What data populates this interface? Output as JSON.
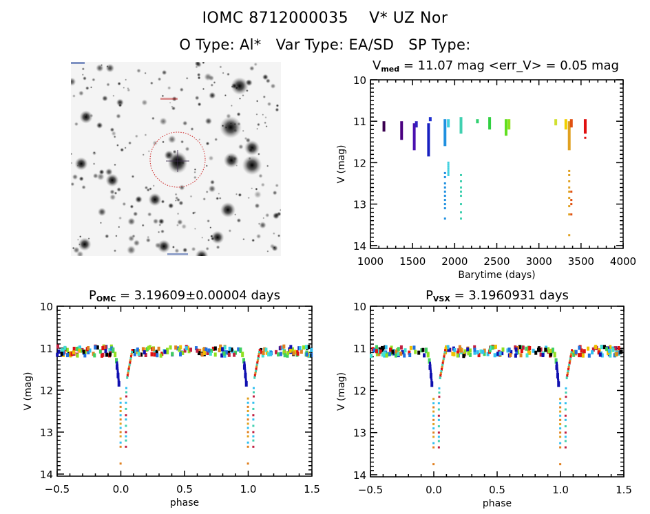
{
  "header": {
    "title": "IOMC 8712000035    V* UZ Nor",
    "otype": "O Type: Al*",
    "vartype": "Var Type: EA/SD",
    "sptype": "SP Type:"
  },
  "finder_chart": {
    "description": "grayscale star field finder chart with dotted red circle centered on target",
    "circle_color": "#cc2020"
  },
  "chart_data": [
    {
      "id": "lightcurve",
      "type": "scatter",
      "title": "V_med = 11.07 mag <err_V> = 0.05 mag",
      "title_main": "V",
      "title_sub": "med",
      "title_rest": " = 11.07 mag <err_V> = 0.05 mag",
      "xlabel": "Barytime (days)",
      "ylabel": "V (mag)",
      "xlim": [
        1000,
        4000
      ],
      "ylim": [
        14.07,
        10
      ],
      "y_inverted": true,
      "xticks": [
        1000,
        1500,
        2000,
        2500,
        3000,
        3500,
        4000
      ],
      "yticks": [
        10,
        11,
        12,
        13,
        14
      ],
      "color_scale": "rainbow by time (purple early to red late)",
      "groups": [
        {
          "x": 1160,
          "v_min": 11.0,
          "v_max": 11.25,
          "color": "#3a0050",
          "deep": []
        },
        {
          "x": 1370,
          "v_min": 11.0,
          "v_max": 11.45,
          "color": "#4a0080",
          "deep": []
        },
        {
          "x": 1520,
          "v_min": 11.05,
          "v_max": 11.7,
          "color": "#4a10b0",
          "deep": []
        },
        {
          "x": 1545,
          "v_min": 11.0,
          "v_max": 11.15,
          "color": "#3020c0",
          "deep": []
        },
        {
          "x": 1690,
          "v_min": 11.05,
          "v_max": 11.85,
          "color": "#1820c0",
          "deep": []
        },
        {
          "x": 1710,
          "v_min": 10.9,
          "v_max": 11.0,
          "color": "#2030d0",
          "deep": []
        },
        {
          "x": 1885,
          "v_min": 10.95,
          "v_max": 11.6,
          "color": "#2090e0",
          "deep": [
            12.25,
            12.35,
            12.5,
            12.6,
            12.7,
            12.8,
            12.9,
            13.0,
            13.1,
            13.35
          ]
        },
        {
          "x": 1925,
          "v_min": 10.95,
          "v_max": 11.15,
          "color": "#40d0e0",
          "deep": [
            12.0,
            12.05,
            12.1,
            12.15,
            12.2,
            12.25,
            12.3
          ]
        },
        {
          "x": 2075,
          "v_min": 10.9,
          "v_max": 11.3,
          "color": "#40d0b0",
          "deep": [
            12.3,
            12.45,
            12.6,
            12.7,
            12.8,
            13.0,
            13.2,
            13.35
          ]
        },
        {
          "x": 2270,
          "v_min": 10.95,
          "v_max": 11.05,
          "color": "#30d070",
          "deep": []
        },
        {
          "x": 2415,
          "v_min": 10.9,
          "v_max": 11.2,
          "color": "#30d040",
          "deep": []
        },
        {
          "x": 2610,
          "v_min": 10.95,
          "v_max": 11.35,
          "color": "#60e020",
          "deep": []
        },
        {
          "x": 2645,
          "v_min": 10.95,
          "v_max": 11.2,
          "color": "#90e020",
          "deep": []
        },
        {
          "x": 3200,
          "v_min": 10.95,
          "v_max": 11.1,
          "color": "#d0e030",
          "deep": []
        },
        {
          "x": 3320,
          "v_min": 10.95,
          "v_max": 11.2,
          "color": "#f0d000",
          "deep": []
        },
        {
          "x": 3360,
          "v_min": 11.0,
          "v_max": 11.7,
          "color": "#e0a020",
          "deep": [
            12.2,
            12.3,
            12.45,
            12.6,
            12.7,
            12.85,
            13.05,
            13.25,
            13.75
          ]
        },
        {
          "x": 3385,
          "v_min": 10.95,
          "v_max": 11.15,
          "color": "#e05010",
          "deep": [
            12.7,
            12.9,
            13.0,
            13.25
          ]
        },
        {
          "x": 3550,
          "v_min": 10.95,
          "v_max": 11.3,
          "color": "#e01010",
          "deep": [
            11.4
          ]
        }
      ]
    },
    {
      "id": "phase_omc",
      "type": "scatter",
      "title_main": "P",
      "title_sub": "OMC",
      "title_rest": " = 3.19609±0.00004 days",
      "xlabel": "phase",
      "ylabel": "V (mag)",
      "xlim": [
        -0.5,
        1.5
      ],
      "ylim": [
        14.05,
        10
      ],
      "y_inverted": true,
      "xticks": [
        "-0.5",
        "0.0",
        "0.5",
        "1.0",
        "1.5"
      ],
      "yticks": [
        10,
        11,
        12,
        13,
        14
      ],
      "baseline_mag": 11.07,
      "eclipse": {
        "center_phase": 0.0,
        "min_mag": 13.75,
        "ingress_start": -0.06,
        "egress_end": 0.09
      }
    },
    {
      "id": "phase_vsx",
      "type": "scatter",
      "title_main": "P",
      "title_sub": "VSX",
      "title_rest": " = 3.1960931 days",
      "xlabel": "phase",
      "ylabel": "V (mag)",
      "xlim": [
        -0.5,
        1.5
      ],
      "ylim": [
        14.05,
        10
      ],
      "y_inverted": true,
      "xticks": [
        "-0.5",
        "0.0",
        "0.5",
        "1.0",
        "1.5"
      ],
      "yticks": [
        10,
        11,
        12,
        13,
        14
      ],
      "baseline_mag": 11.07,
      "eclipse": {
        "center_phase": 0.0,
        "min_mag": 13.75,
        "ingress_start": -0.06,
        "egress_end": 0.09
      }
    }
  ]
}
